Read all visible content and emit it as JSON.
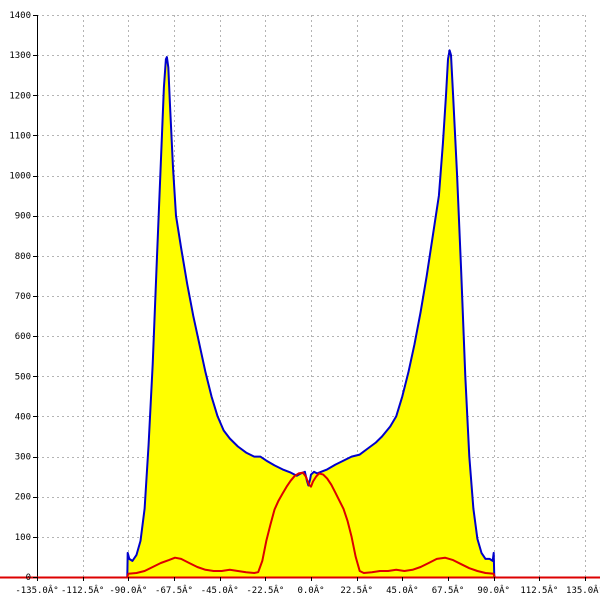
{
  "chart_data": {
    "type": "area",
    "title": "",
    "xlabel": "",
    "ylabel": "",
    "xlim": [
      -135,
      135
    ],
    "ylim": [
      0,
      1400
    ],
    "grid": true,
    "x_tick_values": [
      -135,
      -112.5,
      -90,
      -67.5,
      -45,
      -22.5,
      0,
      22.5,
      45,
      67.5,
      90,
      112.5,
      135
    ],
    "x_tick_labels": [
      "-135.0Â°",
      "-112.5Â°",
      "-90.0Â°",
      "-67.5Â°",
      "-45.0Â°",
      "-22.5Â°",
      "0.0Â°",
      "22.5Â°",
      "45.0Â°",
      "67.5Â°",
      "90.0Â°",
      "112.5Â°",
      "135.0Â°"
    ],
    "y_tick_values": [
      0,
      100,
      200,
      300,
      400,
      500,
      600,
      700,
      800,
      900,
      1000,
      1100,
      1200,
      1300,
      1400
    ],
    "y_tick_labels": [
      "0",
      "100",
      "200",
      "300",
      "400",
      "500",
      "600",
      "700",
      "800",
      "900",
      "1000",
      "1100",
      "1200",
      "1300",
      "1400"
    ],
    "series": [
      {
        "color": "#0000cc",
        "fill": "#ffff00",
        "points": [
          [
            -90.5,
            0
          ],
          [
            -90.3,
            60
          ],
          [
            -89.5,
            45
          ],
          [
            -88,
            40
          ],
          [
            -86,
            55
          ],
          [
            -84,
            90
          ],
          [
            -82,
            170
          ],
          [
            -80,
            330
          ],
          [
            -78,
            530
          ],
          [
            -76,
            780
          ],
          [
            -74,
            1030
          ],
          [
            -72.5,
            1220
          ],
          [
            -71.5,
            1290
          ],
          [
            -71,
            1295
          ],
          [
            -70.3,
            1270
          ],
          [
            -69.5,
            1180
          ],
          [
            -68,
            1020
          ],
          [
            -66.5,
            900
          ],
          [
            -64,
            820
          ],
          [
            -61,
            730
          ],
          [
            -58,
            650
          ],
          [
            -55,
            580
          ],
          [
            -52,
            510
          ],
          [
            -49,
            450
          ],
          [
            -46,
            400
          ],
          [
            -43,
            365
          ],
          [
            -40,
            345
          ],
          [
            -36,
            325
          ],
          [
            -32,
            310
          ],
          [
            -28,
            300
          ],
          [
            -25,
            300
          ],
          [
            -22,
            290
          ],
          [
            -18,
            278
          ],
          [
            -14,
            268
          ],
          [
            -10,
            260
          ],
          [
            -7,
            252
          ],
          [
            -5,
            258
          ],
          [
            -3,
            262
          ],
          [
            -2,
            240
          ],
          [
            -1.3,
            228
          ],
          [
            -0.5,
            242
          ],
          [
            0,
            255
          ],
          [
            1.5,
            262
          ],
          [
            3,
            258
          ],
          [
            5,
            262
          ],
          [
            8,
            268
          ],
          [
            12,
            280
          ],
          [
            16,
            290
          ],
          [
            20,
            300
          ],
          [
            24,
            305
          ],
          [
            28,
            320
          ],
          [
            32,
            335
          ],
          [
            35,
            350
          ],
          [
            39,
            375
          ],
          [
            42,
            400
          ],
          [
            45,
            450
          ],
          [
            48,
            510
          ],
          [
            51,
            580
          ],
          [
            54,
            660
          ],
          [
            57,
            750
          ],
          [
            60,
            850
          ],
          [
            63,
            950
          ],
          [
            65,
            1080
          ],
          [
            66.5,
            1200
          ],
          [
            67.5,
            1290
          ],
          [
            68.3,
            1312
          ],
          [
            69,
            1300
          ],
          [
            70,
            1200
          ],
          [
            72,
            1000
          ],
          [
            74,
            760
          ],
          [
            76,
            500
          ],
          [
            78,
            300
          ],
          [
            80,
            170
          ],
          [
            82,
            95
          ],
          [
            84,
            60
          ],
          [
            86,
            45
          ],
          [
            88,
            45
          ],
          [
            89.5,
            40
          ],
          [
            90,
            60
          ],
          [
            90.3,
            0
          ]
        ]
      },
      {
        "color": "#dd0000",
        "fill": "none",
        "points": [
          [
            -90.5,
            0
          ],
          [
            -90,
            8
          ],
          [
            -86,
            10
          ],
          [
            -82,
            15
          ],
          [
            -78,
            25
          ],
          [
            -74,
            35
          ],
          [
            -70,
            42
          ],
          [
            -67,
            48
          ],
          [
            -64,
            45
          ],
          [
            -60,
            35
          ],
          [
            -56,
            25
          ],
          [
            -52,
            18
          ],
          [
            -48,
            15
          ],
          [
            -44,
            15
          ],
          [
            -40,
            18
          ],
          [
            -36,
            15
          ],
          [
            -32,
            12
          ],
          [
            -28,
            10
          ],
          [
            -26,
            12
          ],
          [
            -24,
            40
          ],
          [
            -22,
            90
          ],
          [
            -20,
            130
          ],
          [
            -18,
            168
          ],
          [
            -16,
            190
          ],
          [
            -14,
            208
          ],
          [
            -12,
            225
          ],
          [
            -10,
            240
          ],
          [
            -8,
            252
          ],
          [
            -6,
            258
          ],
          [
            -4,
            260
          ],
          [
            -2.5,
            250
          ],
          [
            -1,
            230
          ],
          [
            0,
            225
          ],
          [
            1,
            238
          ],
          [
            2.5,
            250
          ],
          [
            4,
            258
          ],
          [
            6,
            255
          ],
          [
            8,
            245
          ],
          [
            10,
            230
          ],
          [
            12,
            210
          ],
          [
            14,
            190
          ],
          [
            16,
            170
          ],
          [
            18,
            140
          ],
          [
            20,
            100
          ],
          [
            22,
            50
          ],
          [
            24,
            15
          ],
          [
            26,
            10
          ],
          [
            30,
            12
          ],
          [
            34,
            15
          ],
          [
            38,
            15
          ],
          [
            42,
            18
          ],
          [
            46,
            15
          ],
          [
            50,
            18
          ],
          [
            54,
            25
          ],
          [
            58,
            35
          ],
          [
            62,
            45
          ],
          [
            66,
            48
          ],
          [
            70,
            42
          ],
          [
            74,
            32
          ],
          [
            78,
            22
          ],
          [
            82,
            15
          ],
          [
            86,
            10
          ],
          [
            90,
            8
          ],
          [
            90.5,
            0
          ]
        ]
      }
    ]
  }
}
